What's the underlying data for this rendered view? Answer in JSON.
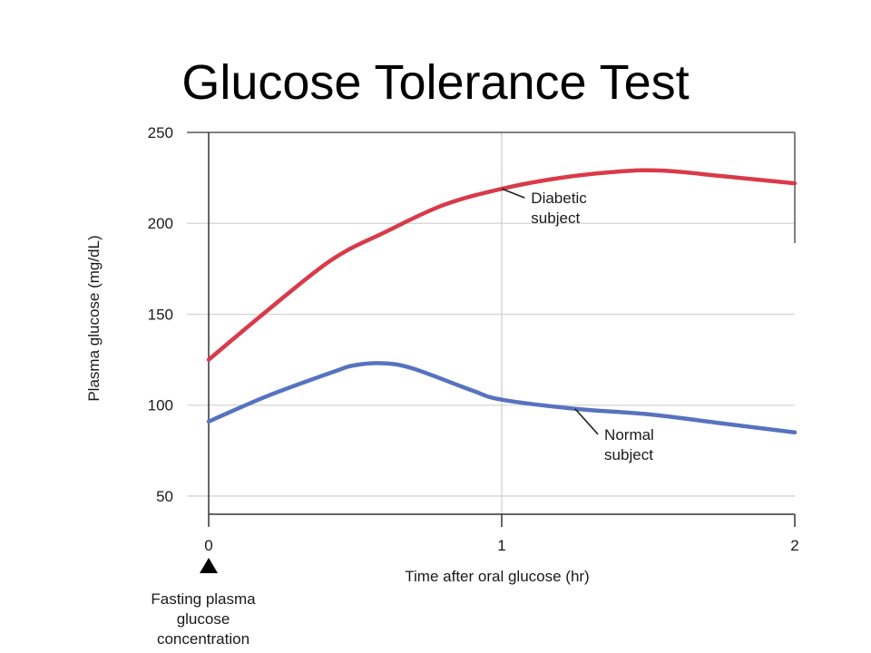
{
  "slide": {
    "title": "Glucose Tolerance Test"
  },
  "chart_data": {
    "type": "line",
    "title": "",
    "xlabel": "Time after oral glucose (hr)",
    "ylabel": "Plasma glucose (mg/dL)",
    "xlim": [
      0,
      2
    ],
    "ylim": [
      40,
      250
    ],
    "x_ticks": [
      {
        "value": 0,
        "label": "0"
      },
      {
        "value": 1,
        "label": "1"
      },
      {
        "value": 2,
        "label": "2"
      }
    ],
    "y_ticks": [
      {
        "value": 50,
        "label": "50"
      },
      {
        "value": 100,
        "label": "100"
      },
      {
        "value": 150,
        "label": "150"
      },
      {
        "value": 200,
        "label": "200"
      },
      {
        "value": 250,
        "label": "250"
      }
    ],
    "grid": true,
    "series": [
      {
        "name": "Diabetic subject",
        "color": "#d93a4a",
        "points": [
          [
            0,
            125
          ],
          [
            0.2,
            152
          ],
          [
            0.42,
            180
          ],
          [
            0.6,
            195
          ],
          [
            0.8,
            210
          ],
          [
            1.0,
            219
          ],
          [
            1.2,
            225
          ],
          [
            1.4,
            228.5
          ],
          [
            1.55,
            229
          ],
          [
            1.75,
            226
          ],
          [
            2.0,
            222
          ]
        ]
      },
      {
        "name": "Normal subject",
        "color": "#5673c0",
        "points": [
          [
            0,
            91
          ],
          [
            0.2,
            105
          ],
          [
            0.42,
            118
          ],
          [
            0.5,
            122
          ],
          [
            0.6,
            123
          ],
          [
            0.7,
            120
          ],
          [
            0.9,
            108
          ],
          [
            1.0,
            103
          ],
          [
            1.25,
            98
          ],
          [
            1.5,
            95
          ],
          [
            1.75,
            90
          ],
          [
            2.0,
            85
          ]
        ]
      }
    ],
    "annotations": [
      {
        "name": "diabetic",
        "lines": [
          "Diabetic",
          "subject"
        ],
        "point": [
          1.0,
          219
        ],
        "text_at": [
          1.1,
          212
        ]
      },
      {
        "name": "normal",
        "lines": [
          "Normal",
          "subject"
        ],
        "point": [
          1.25,
          98
        ],
        "text_at": [
          1.35,
          82
        ]
      }
    ],
    "marker": {
      "symbol": "triangle-up",
      "x": 0,
      "label_lines": [
        "Fasting plasma",
        "glucose",
        "concentration"
      ]
    }
  }
}
